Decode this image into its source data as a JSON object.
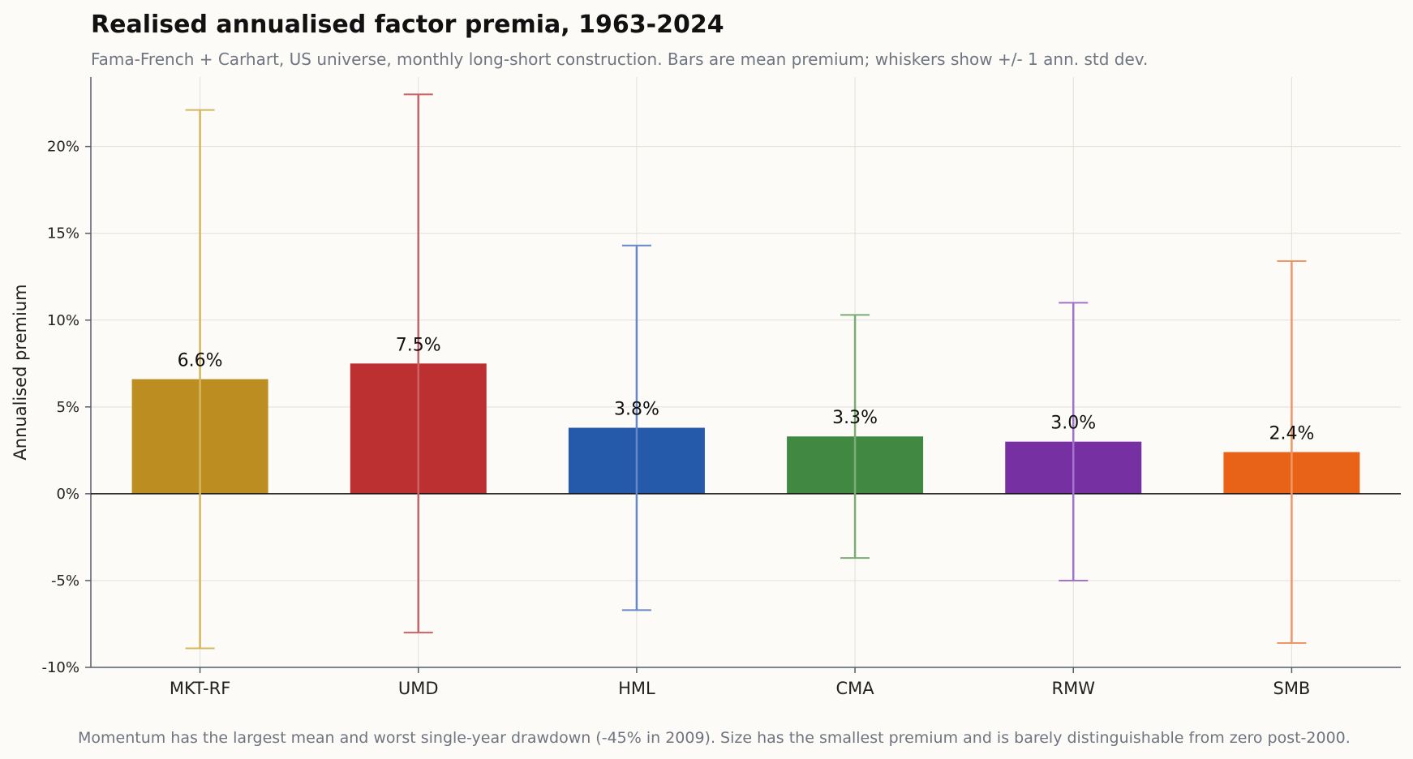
{
  "chart_data": {
    "type": "bar",
    "title": "Realised annualised factor premia, 1963-2024",
    "subtitle": "Fama-French + Carhart, US universe, monthly long-short construction. Bars are mean premium; whiskers show +/- 1 ann. std dev.",
    "footnote": "Momentum has the largest mean and worst single-year drawdown (-45% in 2009). Size has the smallest premium and is barely distinguishable from zero post-2000.",
    "xlabel": "",
    "ylabel": "Annualised premium",
    "ylim": [
      -10,
      24
    ],
    "yticks": [
      -10,
      -5,
      0,
      5,
      10,
      15,
      20
    ],
    "ytick_labels": [
      "-10%",
      "-5%",
      "0%",
      "5%",
      "10%",
      "15%",
      "20%"
    ],
    "grid": true,
    "categories": [
      "MKT-RF",
      "UMD",
      "HML",
      "CMA",
      "RMW",
      "SMB"
    ],
    "values": [
      6.6,
      7.5,
      3.8,
      3.3,
      3.0,
      2.4
    ],
    "value_labels": [
      "6.6%",
      "7.5%",
      "3.8%",
      "3.3%",
      "3.0%",
      "2.4%"
    ],
    "error_low": [
      -8.9,
      -8.0,
      -6.7,
      -3.7,
      -5.0,
      -8.6
    ],
    "error_high": [
      22.1,
      23.0,
      14.3,
      10.3,
      11.0,
      13.4
    ],
    "colors": [
      "#bc8e22",
      "#bd3031",
      "#255aaa",
      "#418843",
      "#7630a1",
      "#e86318"
    ],
    "whisker_colors": [
      "#d4b75c",
      "#cd6266",
      "#6688c8",
      "#7aac74",
      "#a372ca",
      "#ef9666"
    ]
  }
}
